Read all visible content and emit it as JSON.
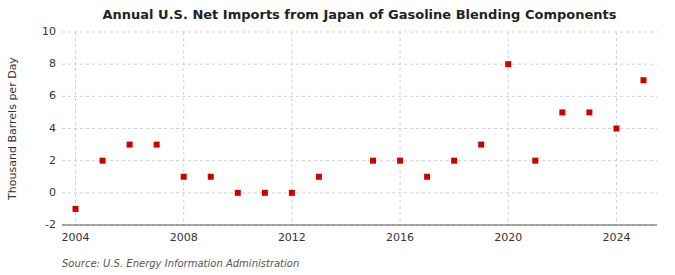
{
  "chart_data": {
    "type": "scatter",
    "title": "Annual U.S. Net Imports from Japan of Gasoline Blending Components",
    "ylabel": "Thousand Barrels per Day",
    "annotations": [
      "Source: U.S. Energy Information Administration"
    ],
    "x": [
      2004,
      2005,
      2006,
      2007,
      2008,
      2009,
      2010,
      2011,
      2012,
      2013,
      2015,
      2016,
      2017,
      2018,
      2019,
      2020,
      2021,
      2022,
      2023,
      2024,
      2025
    ],
    "values": [
      -1,
      2,
      3,
      3,
      1,
      1,
      0,
      0,
      0,
      1,
      2,
      2,
      1,
      2,
      3,
      8,
      2,
      5,
      5,
      4,
      7
    ],
    "color": "#cc0000",
    "marker": "square",
    "xlim": [
      2003.5,
      2025.5
    ],
    "ylim": [
      -2,
      10
    ],
    "xticks": [
      2004,
      2008,
      2012,
      2016,
      2020,
      2024
    ],
    "yticks": [
      -2,
      0,
      2,
      4,
      6,
      8,
      10
    ],
    "grid": true
  }
}
